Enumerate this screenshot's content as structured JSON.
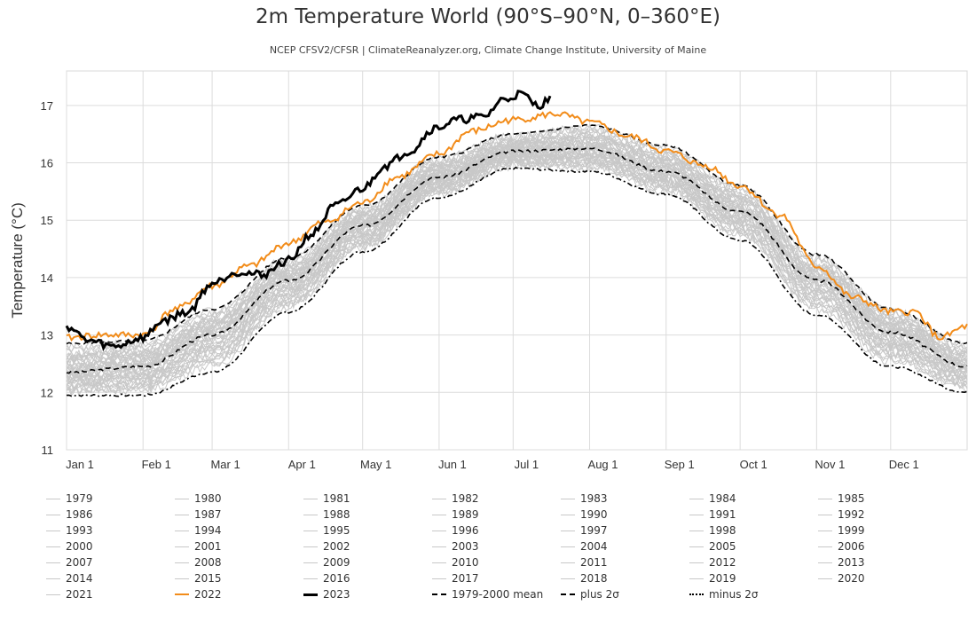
{
  "chart_data": {
    "type": "line",
    "title": "2m Temperature World (90°S–90°N, 0–360°E)",
    "subtitle": "NCEP CFSV2/CFSR | ClimateReanalyzer.org, Climate Change Institute, University of Maine",
    "ylabel": "Temperature (°C)",
    "xlabel": "",
    "ylim": [
      11,
      17.6
    ],
    "yticks": [
      11,
      12,
      13,
      14,
      15,
      16,
      17
    ],
    "x_month_labels": [
      "Jan 1",
      "Feb 1",
      "Mar 1",
      "Apr 1",
      "May 1",
      "Jun 1",
      "Jul 1",
      "Aug 1",
      "Sep 1",
      "Oct 1",
      "Nov 1",
      "Dec 1"
    ],
    "grid": true,
    "legend_position": "bottom",
    "colors": {
      "historical": "#c8c8c8",
      "y2022": "#f28c1a",
      "y2023": "#000000",
      "stats": "#000000"
    },
    "climatology": {
      "name": "1979-2000 mean",
      "day_of_year": [
        1,
        32,
        60,
        91,
        121,
        152,
        182,
        213,
        244,
        274,
        305,
        335,
        366
      ],
      "values": [
        12.35,
        12.45,
        13.0,
        13.95,
        14.9,
        15.75,
        16.2,
        16.25,
        15.85,
        15.15,
        13.95,
        13.05,
        12.45
      ]
    },
    "plus_2sigma": {
      "name": "plus 2σ",
      "day_of_year": [
        1,
        32,
        60,
        91,
        121,
        152,
        182,
        213,
        244,
        274,
        305,
        335,
        366
      ],
      "values": [
        12.85,
        12.9,
        13.45,
        14.35,
        15.25,
        16.1,
        16.5,
        16.65,
        16.3,
        15.6,
        14.4,
        13.45,
        12.85
      ]
    },
    "minus_2sigma": {
      "name": "minus 2σ",
      "day_of_year": [
        1,
        32,
        60,
        91,
        121,
        152,
        182,
        213,
        244,
        274,
        305,
        335,
        366
      ],
      "values": [
        11.95,
        11.95,
        12.35,
        13.4,
        14.45,
        15.4,
        15.9,
        15.85,
        15.45,
        14.65,
        13.35,
        12.45,
        12.0
      ]
    },
    "series": [
      {
        "name": "2022",
        "role": "highlight",
        "day_of_year": [
          1,
          15,
          32,
          45,
          60,
          75,
          91,
          105,
          121,
          135,
          152,
          165,
          182,
          200,
          213,
          230,
          244,
          260,
          274,
          290,
          305,
          320,
          335,
          345,
          355,
          366
        ],
        "values": [
          12.95,
          13.0,
          13.0,
          13.45,
          13.85,
          14.2,
          14.6,
          14.95,
          15.3,
          15.75,
          16.15,
          16.55,
          16.75,
          16.85,
          16.7,
          16.45,
          16.2,
          15.95,
          15.6,
          15.1,
          14.2,
          13.65,
          13.4,
          13.4,
          12.95,
          13.15
        ]
      },
      {
        "name": "2023",
        "role": "highlight",
        "day_of_year": [
          1,
          10,
          20,
          32,
          40,
          50,
          60,
          70,
          80,
          91,
          100,
          110,
          121,
          130,
          140,
          150,
          160,
          170,
          178,
          185,
          192,
          197
        ],
        "values": [
          13.15,
          12.9,
          12.8,
          12.95,
          13.25,
          13.4,
          13.9,
          14.1,
          14.05,
          14.3,
          14.75,
          15.25,
          15.55,
          15.95,
          16.2,
          16.6,
          16.75,
          16.8,
          17.1,
          17.2,
          17.0,
          17.1
        ]
      }
    ],
    "historical_years": [
      "1979",
      "1980",
      "1981",
      "1982",
      "1983",
      "1984",
      "1985",
      "1986",
      "1987",
      "1988",
      "1989",
      "1990",
      "1991",
      "1992",
      "1993",
      "1994",
      "1995",
      "1996",
      "1997",
      "1998",
      "1999",
      "2000",
      "2001",
      "2002",
      "2003",
      "2004",
      "2005",
      "2006",
      "2007",
      "2008",
      "2009",
      "2010",
      "2011",
      "2012",
      "2013",
      "2014",
      "2015",
      "2016",
      "2017",
      "2018",
      "2019",
      "2020",
      "2021"
    ],
    "historical_envelope": "historical years fall between roughly the minus 2σ and plus 2σ curves",
    "legend": [
      "1979",
      "1980",
      "1981",
      "1982",
      "1983",
      "1984",
      "1985",
      "1986",
      "1987",
      "1988",
      "1989",
      "1990",
      "1991",
      "1992",
      "1993",
      "1994",
      "1995",
      "1996",
      "1997",
      "1998",
      "1999",
      "2000",
      "2001",
      "2002",
      "2003",
      "2004",
      "2005",
      "2006",
      "2007",
      "2008",
      "2009",
      "2010",
      "2011",
      "2012",
      "2013",
      "2014",
      "2015",
      "2016",
      "2017",
      "2018",
      "2019",
      "2020",
      "2021",
      "2022",
      "2023",
      "1979-2000 mean",
      "plus 2σ",
      "minus 2σ"
    ]
  }
}
